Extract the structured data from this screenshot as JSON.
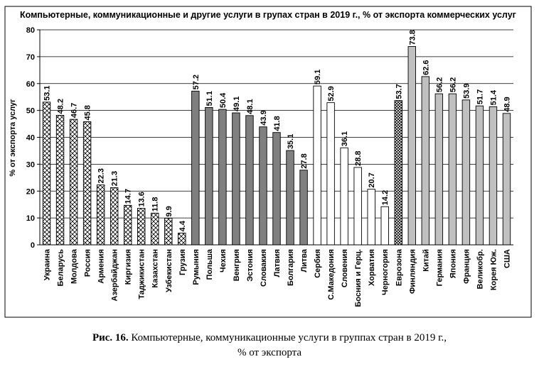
{
  "caption": {
    "label": "Рис. 16.",
    "line1": "Компьютерные, коммуникационные услуги в группах стран в 2019 г.,",
    "line2": "% от экспорта"
  },
  "chart_data": {
    "type": "bar",
    "title": "Компьютерные, коммуникационные и другие услуги в групах стран в 2019 г., % от экспорта коммерческих услуг",
    "ylabel": "% от экспорта услуг",
    "xlabel": "",
    "ylim": [
      0,
      80
    ],
    "yticks": [
      0,
      10,
      20,
      30,
      40,
      50,
      60,
      70,
      80
    ],
    "grid": true,
    "legend": "none",
    "categories": [
      "Украина",
      "Беларусь",
      "Молдова",
      "Россия",
      "Армения",
      "Азербайджан",
      "Киргизия",
      "Таджикистан",
      "Казахстан",
      "Узбекистан",
      "Грузия",
      "Румыния",
      "Польша",
      "Чехия",
      "Венгрия",
      "Эстония",
      "Словакия",
      "Латвия",
      "Болгария",
      "Литва",
      "Сербия",
      "С.Македония",
      "Словения",
      "Босния и Герц.",
      "Хорватия",
      "Черногория",
      "Еврозона",
      "Финляндия",
      "Китай",
      "Германия",
      "Япония",
      "Франция",
      "Великобр.",
      "Корея Юж.",
      "США"
    ],
    "values": [
      53.1,
      48.2,
      46.7,
      45.8,
      22.3,
      21.3,
      14.7,
      13.6,
      11.8,
      9.9,
      4.4,
      57.2,
      51.1,
      50.4,
      49.1,
      48.1,
      43.9,
      41.8,
      35.1,
      27.8,
      59.1,
      52.9,
      36.1,
      28.8,
      20.7,
      14.2,
      53.7,
      73.8,
      62.6,
      56.2,
      56.2,
      53.9,
      51.7,
      51.4,
      48.9
    ],
    "value_labels": [
      "53.1",
      "48.2",
      "46.7",
      "45.8",
      "22.3",
      "21.3",
      "14.7",
      "13.6",
      "11.8",
      "9.9",
      "4.4",
      "57.2",
      "51.1",
      "50.4",
      "49.1",
      "48.1",
      "43.9",
      "41.8",
      "35.1",
      "27.8",
      "59.1",
      "52.9",
      "36.1",
      "28.8",
      "20.7",
      "14.2",
      "53.7",
      "73.8",
      "62.6",
      "56.2",
      "56.2",
      "53.9",
      "51.7",
      "51.4",
      "48.9"
    ],
    "groups": [
      "cis",
      "cis",
      "cis",
      "cis",
      "cis",
      "cis",
      "cis",
      "cis",
      "cis",
      "cis",
      "cis",
      "ce",
      "ce",
      "ce",
      "ce",
      "ce",
      "ce",
      "ce",
      "ce",
      "ce",
      "balkans",
      "balkans",
      "balkans",
      "balkans",
      "balkans",
      "balkans",
      "eurozone",
      "developed",
      "developed",
      "developed",
      "developed",
      "developed",
      "developed",
      "developed",
      "developed"
    ],
    "colors": {
      "cis": "#ffffff",
      "ce": "#808080",
      "balkans": "#ffffff",
      "eurozone": "#ffffff",
      "developed": "#c0c0c0"
    }
  }
}
